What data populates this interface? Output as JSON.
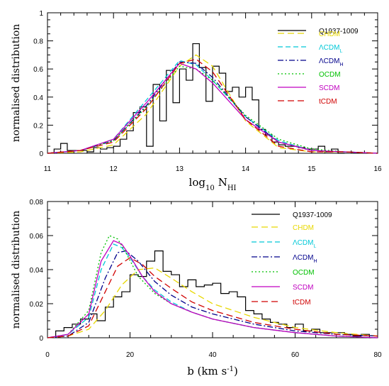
{
  "chart_data": [
    {
      "type": "line",
      "xlabel": "log10 NHI",
      "ylabel": "normalised distribution",
      "xlim": [
        11,
        16
      ],
      "ylim": [
        0,
        1
      ],
      "xticks": [
        "11",
        "12",
        "13",
        "14",
        "15",
        "16"
      ],
      "yticks": [
        "0",
        "0.2",
        "0.4",
        "0.6",
        "0.8",
        "1"
      ],
      "legend_position": "top-right",
      "observed": {
        "name": "Q1937-1009",
        "color": "#000000",
        "bin_edges": [
          11.0,
          11.1,
          11.2,
          11.3,
          11.4,
          11.5,
          11.6,
          11.7,
          11.8,
          11.9,
          12.0,
          12.1,
          12.2,
          12.3,
          12.4,
          12.5,
          12.6,
          12.7,
          12.8,
          12.9,
          13.0,
          13.1,
          13.2,
          13.3,
          13.4,
          13.5,
          13.6,
          13.7,
          13.8,
          13.9,
          14.0,
          14.1,
          14.2,
          14.3,
          14.4,
          14.5,
          14.6,
          14.7,
          14.8,
          14.9,
          15.0,
          15.1,
          15.2,
          15.3,
          15.4,
          15.5
        ],
        "values": [
          0.0,
          0.03,
          0.07,
          0.02,
          0.02,
          0.02,
          0.01,
          0.04,
          0.03,
          0.04,
          0.05,
          0.1,
          0.16,
          0.29,
          0.33,
          0.05,
          0.49,
          0.23,
          0.59,
          0.36,
          0.6,
          0.52,
          0.78,
          0.61,
          0.37,
          0.62,
          0.57,
          0.44,
          0.47,
          0.4,
          0.47,
          0.38,
          0.17,
          0.13,
          0.08,
          0.06,
          0.05,
          0.05,
          0.04,
          0.03,
          0.03,
          0.05,
          0.01,
          0.03,
          0.0
        ]
      },
      "series": [
        {
          "name": "CHDM",
          "color": "#e8d800",
          "dash": "9,5",
          "x": [
            11.0,
            11.5,
            12.0,
            12.5,
            13.0,
            13.25,
            13.5,
            14.0,
            14.5,
            15.0,
            15.5,
            16.0
          ],
          "values": [
            0.0,
            0.01,
            0.06,
            0.28,
            0.62,
            0.7,
            0.62,
            0.23,
            0.04,
            0.01,
            0.01,
            0.0
          ]
        },
        {
          "name": "ΛCDML",
          "color": "#00c8d8",
          "dash": "7,4",
          "x": [
            11.0,
            11.5,
            12.0,
            12.5,
            13.0,
            13.25,
            13.5,
            14.0,
            14.5,
            15.0,
            15.5,
            16.0
          ],
          "values": [
            0.0,
            0.02,
            0.1,
            0.38,
            0.66,
            0.63,
            0.52,
            0.26,
            0.09,
            0.02,
            0.01,
            0.0
          ]
        },
        {
          "name": "ΛCDMH",
          "color": "#00008b",
          "dash": "8,3,2,3",
          "x": [
            11.0,
            11.5,
            12.0,
            12.5,
            13.0,
            13.25,
            13.5,
            14.0,
            14.5,
            15.0,
            15.5,
            16.0
          ],
          "values": [
            0.0,
            0.02,
            0.09,
            0.34,
            0.65,
            0.64,
            0.54,
            0.26,
            0.08,
            0.02,
            0.01,
            0.0
          ]
        },
        {
          "name": "OCDM",
          "color": "#00c000",
          "dash": "2,3",
          "x": [
            11.0,
            11.5,
            12.0,
            12.5,
            13.0,
            13.25,
            13.5,
            14.0,
            14.5,
            15.0,
            15.5,
            16.0
          ],
          "values": [
            0.0,
            0.02,
            0.09,
            0.33,
            0.62,
            0.6,
            0.52,
            0.27,
            0.1,
            0.03,
            0.01,
            0.0
          ]
        },
        {
          "name": "SCDM",
          "color": "#c000c0",
          "dash": "",
          "x": [
            11.0,
            11.5,
            12.0,
            12.5,
            13.0,
            13.25,
            13.5,
            14.0,
            14.5,
            15.0,
            15.5,
            16.0
          ],
          "values": [
            0.0,
            0.02,
            0.1,
            0.36,
            0.64,
            0.6,
            0.5,
            0.24,
            0.08,
            0.02,
            0.01,
            0.0
          ]
        },
        {
          "name": "tCDM",
          "color": "#d00000",
          "dash": "9,5",
          "x": [
            11.0,
            11.5,
            12.0,
            12.5,
            13.0,
            13.25,
            13.5,
            14.0,
            14.5,
            15.0,
            15.5,
            16.0
          ],
          "values": [
            0.0,
            0.02,
            0.08,
            0.32,
            0.64,
            0.67,
            0.58,
            0.24,
            0.05,
            0.01,
            0.01,
            0.0
          ]
        }
      ]
    },
    {
      "type": "line",
      "xlabel": "b (km s-1)",
      "ylabel": "normalised distribution",
      "xlim": [
        0,
        80
      ],
      "ylim": [
        0,
        0.08
      ],
      "xticks": [
        "0",
        "20",
        "40",
        "60",
        "80"
      ],
      "yticks": [
        "0",
        "0.02",
        "0.04",
        "0.06",
        "0.08"
      ],
      "legend_position": "top-right",
      "observed": {
        "name": "Q1937-1009",
        "color": "#000000",
        "bin_edges": [
          2,
          4,
          6,
          8,
          10,
          12,
          14,
          16,
          18,
          20,
          22,
          24,
          26,
          28,
          30,
          32,
          34,
          36,
          38,
          40,
          42,
          44,
          46,
          48,
          50,
          52,
          54,
          56,
          58,
          60,
          62,
          64,
          66,
          68,
          70,
          72,
          74,
          76,
          78,
          80
        ],
        "values": [
          0.004,
          0.006,
          0.008,
          0.011,
          0.014,
          0.01,
          0.018,
          0.024,
          0.027,
          0.037,
          0.036,
          0.045,
          0.051,
          0.039,
          0.037,
          0.03,
          0.034,
          0.03,
          0.031,
          0.032,
          0.026,
          0.027,
          0.024,
          0.016,
          0.014,
          0.011,
          0.009,
          0.008,
          0.006,
          0.008,
          0.004,
          0.005,
          0.003,
          0.003,
          0.003,
          0.002,
          0.001,
          0.002,
          0.0
        ]
      },
      "series": [
        {
          "name": "CHDM",
          "color": "#e8d800",
          "dash": "9,5",
          "x": [
            0,
            5,
            10,
            14,
            18,
            22,
            26,
            30,
            35,
            40,
            50,
            60,
            70,
            80
          ],
          "values": [
            0.0,
            0.001,
            0.005,
            0.016,
            0.031,
            0.04,
            0.041,
            0.035,
            0.027,
            0.02,
            0.012,
            0.006,
            0.003,
            0.001
          ]
        },
        {
          "name": "ΛCDML",
          "color": "#00c8d8",
          "dash": "7,4",
          "x": [
            0,
            5,
            10,
            13,
            16,
            18,
            20,
            23,
            26,
            30,
            35,
            40,
            50,
            60,
            70,
            80
          ],
          "values": [
            0.0,
            0.002,
            0.012,
            0.04,
            0.055,
            0.053,
            0.047,
            0.036,
            0.028,
            0.021,
            0.015,
            0.011,
            0.006,
            0.003,
            0.001,
            0.0
          ]
        },
        {
          "name": "ΛCDMH",
          "color": "#00008b",
          "dash": "8,3,2,3",
          "x": [
            0,
            5,
            10,
            14,
            17,
            19,
            22,
            26,
            30,
            35,
            40,
            50,
            60,
            70,
            80
          ],
          "values": [
            0.0,
            0.001,
            0.009,
            0.035,
            0.05,
            0.051,
            0.045,
            0.033,
            0.025,
            0.018,
            0.014,
            0.008,
            0.004,
            0.002,
            0.001
          ]
        },
        {
          "name": "OCDM",
          "color": "#00c000",
          "dash": "2,3",
          "x": [
            0,
            5,
            10,
            13,
            15,
            17,
            19,
            22,
            26,
            30,
            35,
            40,
            50,
            60,
            70,
            80
          ],
          "values": [
            0.0,
            0.002,
            0.016,
            0.05,
            0.06,
            0.058,
            0.05,
            0.036,
            0.026,
            0.02,
            0.015,
            0.011,
            0.006,
            0.003,
            0.001,
            0.0
          ]
        },
        {
          "name": "SCDM",
          "color": "#c000c0",
          "dash": "",
          "x": [
            0,
            5,
            10,
            13,
            16,
            18,
            20,
            23,
            26,
            30,
            35,
            40,
            50,
            60,
            70,
            80
          ],
          "values": [
            0.0,
            0.002,
            0.014,
            0.045,
            0.057,
            0.055,
            0.048,
            0.036,
            0.027,
            0.02,
            0.015,
            0.011,
            0.006,
            0.003,
            0.001,
            0.0
          ]
        },
        {
          "name": "tCDM",
          "color": "#d00000",
          "dash": "9,5",
          "x": [
            0,
            5,
            10,
            14,
            17,
            20,
            23,
            26,
            30,
            35,
            40,
            50,
            60,
            70,
            80
          ],
          "values": [
            0.0,
            0.001,
            0.007,
            0.027,
            0.042,
            0.047,
            0.043,
            0.036,
            0.029,
            0.021,
            0.016,
            0.009,
            0.005,
            0.002,
            0.001
          ]
        }
      ]
    }
  ]
}
